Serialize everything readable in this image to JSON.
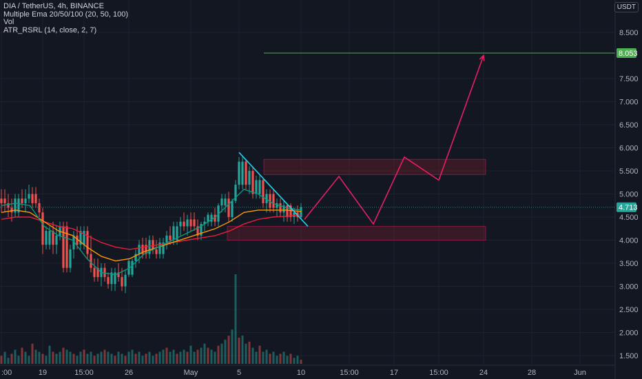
{
  "legend": {
    "symbol_line": "DIA / TetherUS, 4h, BINANCE",
    "ema_line": "Multiple Ema 20/50/100 (20, 50, 100)",
    "vol_line": "Vol",
    "atr_line": "ATR_RSRL (14, close, 2, 7)"
  },
  "currency": "USDT",
  "colors": {
    "background": "#131722",
    "up": "#26a69a",
    "down": "#ef5350",
    "ema20": "#089981",
    "ema50": "#ff9800",
    "ema100": "#e91e3c",
    "atr_stop": "#4caf50",
    "projection": "#e91e63",
    "trendline": "#22d3ee",
    "target_line": "#4caf50",
    "zone_fill": "#7a1f2b"
  },
  "chart_data": {
    "type": "candlestick",
    "symbol": "DIA / TetherUS",
    "timeframe": "4h",
    "exchange": "BINANCE",
    "ylim": [
      1.3,
      9.0
    ],
    "price_axis_ticks": [
      "8.500",
      "8.053",
      "7.500",
      "7.000",
      "6.500",
      "6.000",
      "5.500",
      "5.000",
      "4.713",
      "4.500",
      "4.000",
      "3.500",
      "3.000",
      "2.500",
      "2.000",
      "1.500"
    ],
    "price_tick_values": [
      8.5,
      8.053,
      7.5,
      7.0,
      6.5,
      6.0,
      5.5,
      5.0,
      4.713,
      4.5,
      4.0,
      3.5,
      3.0,
      2.5,
      2.0,
      1.5
    ],
    "time_axis_labels": [
      ":00",
      "19",
      "15:00",
      "26",
      "May",
      "5",
      "10",
      "15:00",
      "17",
      "15:00",
      "24",
      "28",
      "Jun"
    ],
    "time_axis_positions": [
      0,
      12,
      24,
      37,
      55,
      69,
      87,
      101,
      114,
      127,
      140,
      154,
      168
    ],
    "bars_visible": 88,
    "ohlc_samples": [
      {
        "o": 4.9,
        "h": 5.1,
        "l": 4.6,
        "c": 4.8
      },
      {
        "o": 4.8,
        "h": 5.0,
        "l": 4.5,
        "c": 4.7
      },
      {
        "o": 4.7,
        "h": 4.9,
        "l": 4.4,
        "c": 4.6
      },
      {
        "o": 4.6,
        "h": 5.0,
        "l": 4.5,
        "c": 4.9
      },
      {
        "o": 4.9,
        "h": 5.1,
        "l": 4.7,
        "c": 4.8
      },
      {
        "o": 4.8,
        "h": 5.1,
        "l": 4.6,
        "c": 4.9
      },
      {
        "o": 4.9,
        "h": 5.2,
        "l": 4.8,
        "c": 5.0
      },
      {
        "o": 5.0,
        "h": 5.15,
        "l": 4.7,
        "c": 4.8
      },
      {
        "o": 4.8,
        "h": 4.9,
        "l": 4.5,
        "c": 4.6
      },
      {
        "o": 4.6,
        "h": 4.7,
        "l": 3.7,
        "c": 3.9
      },
      {
        "o": 3.9,
        "h": 4.3,
        "l": 3.8,
        "c": 4.2
      },
      {
        "o": 4.2,
        "h": 4.4,
        "l": 3.7,
        "c": 3.9
      },
      {
        "o": 3.9,
        "h": 4.3,
        "l": 3.7,
        "c": 4.1
      },
      {
        "o": 4.1,
        "h": 4.4,
        "l": 4.0,
        "c": 4.3
      },
      {
        "o": 4.3,
        "h": 4.4,
        "l": 3.3,
        "c": 3.4
      },
      {
        "o": 3.4,
        "h": 3.9,
        "l": 3.3,
        "c": 3.8
      },
      {
        "o": 3.8,
        "h": 4.2,
        "l": 3.6,
        "c": 4.1
      },
      {
        "o": 4.1,
        "h": 4.3,
        "l": 3.8,
        "c": 3.9
      },
      {
        "o": 3.9,
        "h": 4.3,
        "l": 3.8,
        "c": 4.2
      },
      {
        "o": 4.2,
        "h": 4.3,
        "l": 3.6,
        "c": 3.7
      },
      {
        "o": 3.7,
        "h": 4.1,
        "l": 3.3,
        "c": 3.4
      },
      {
        "o": 3.4,
        "h": 3.6,
        "l": 3.1,
        "c": 3.2
      },
      {
        "o": 3.2,
        "h": 3.5,
        "l": 3.0,
        "c": 3.4
      },
      {
        "o": 3.4,
        "h": 3.5,
        "l": 3.1,
        "c": 3.2
      },
      {
        "o": 3.2,
        "h": 3.3,
        "l": 2.95,
        "c": 3.05
      },
      {
        "o": 3.05,
        "h": 3.4,
        "l": 2.9,
        "c": 3.3
      },
      {
        "o": 3.3,
        "h": 3.5,
        "l": 3.1,
        "c": 3.2
      },
      {
        "o": 3.2,
        "h": 3.4,
        "l": 2.9,
        "c": 3.0
      },
      {
        "o": 3.0,
        "h": 3.35,
        "l": 2.85,
        "c": 3.25
      },
      {
        "o": 3.25,
        "h": 3.6,
        "l": 3.2,
        "c": 3.55
      },
      {
        "o": 3.55,
        "h": 3.8,
        "l": 3.4,
        "c": 3.7
      },
      {
        "o": 3.7,
        "h": 4.0,
        "l": 3.5,
        "c": 3.9
      },
      {
        "o": 3.9,
        "h": 4.05,
        "l": 3.6,
        "c": 3.7
      },
      {
        "o": 3.7,
        "h": 4.1,
        "l": 3.6,
        "c": 4.0
      },
      {
        "o": 4.0,
        "h": 4.1,
        "l": 3.7,
        "c": 3.8
      },
      {
        "o": 3.8,
        "h": 4.0,
        "l": 3.6,
        "c": 3.7
      },
      {
        "o": 3.7,
        "h": 4.05,
        "l": 3.6,
        "c": 3.95
      },
      {
        "o": 3.95,
        "h": 4.2,
        "l": 3.8,
        "c": 4.1
      },
      {
        "o": 4.1,
        "h": 4.3,
        "l": 3.9,
        "c": 4.0
      },
      {
        "o": 4.0,
        "h": 4.4,
        "l": 3.9,
        "c": 4.3
      },
      {
        "o": 4.3,
        "h": 4.5,
        "l": 4.1,
        "c": 4.4
      },
      {
        "o": 4.4,
        "h": 4.6,
        "l": 4.2,
        "c": 4.3
      },
      {
        "o": 4.3,
        "h": 4.55,
        "l": 4.1,
        "c": 4.45
      },
      {
        "o": 4.45,
        "h": 4.6,
        "l": 4.2,
        "c": 4.3
      },
      {
        "o": 4.3,
        "h": 4.45,
        "l": 4.0,
        "c": 4.1
      },
      {
        "o": 4.1,
        "h": 4.4,
        "l": 4.0,
        "c": 4.35
      },
      {
        "o": 4.35,
        "h": 4.5,
        "l": 4.2,
        "c": 4.4
      },
      {
        "o": 4.4,
        "h": 4.6,
        "l": 4.3,
        "c": 4.55
      },
      {
        "o": 4.55,
        "h": 4.7,
        "l": 4.3,
        "c": 4.4
      },
      {
        "o": 4.4,
        "h": 4.8,
        "l": 4.3,
        "c": 4.75
      },
      {
        "o": 4.75,
        "h": 5.0,
        "l": 4.6,
        "c": 4.9
      },
      {
        "o": 4.9,
        "h": 5.05,
        "l": 4.4,
        "c": 4.5
      },
      {
        "o": 4.5,
        "h": 4.9,
        "l": 4.4,
        "c": 4.85
      },
      {
        "o": 4.85,
        "h": 5.3,
        "l": 4.8,
        "c": 5.2
      },
      {
        "o": 5.2,
        "h": 5.8,
        "l": 5.1,
        "c": 5.7
      },
      {
        "o": 5.7,
        "h": 5.75,
        "l": 5.1,
        "c": 5.2
      },
      {
        "o": 5.2,
        "h": 5.6,
        "l": 5.0,
        "c": 5.5
      },
      {
        "o": 5.5,
        "h": 5.6,
        "l": 4.9,
        "c": 5.0
      },
      {
        "o": 5.0,
        "h": 5.4,
        "l": 4.9,
        "c": 5.3
      },
      {
        "o": 5.3,
        "h": 5.35,
        "l": 4.7,
        "c": 4.8
      },
      {
        "o": 4.8,
        "h": 5.1,
        "l": 4.6,
        "c": 5.0
      },
      {
        "o": 5.0,
        "h": 5.1,
        "l": 4.6,
        "c": 4.7
      },
      {
        "o": 4.7,
        "h": 4.9,
        "l": 4.5,
        "c": 4.8
      },
      {
        "o": 4.8,
        "h": 4.9,
        "l": 4.5,
        "c": 4.6
      },
      {
        "o": 4.6,
        "h": 4.85,
        "l": 4.4,
        "c": 4.75
      },
      {
        "o": 4.75,
        "h": 4.8,
        "l": 4.4,
        "c": 4.5
      },
      {
        "o": 4.5,
        "h": 4.7,
        "l": 4.35,
        "c": 4.6
      },
      {
        "o": 4.6,
        "h": 4.75,
        "l": 4.4,
        "c": 4.5
      },
      {
        "o": 4.5,
        "h": 4.8,
        "l": 4.45,
        "c": 4.713
      }
    ],
    "ema20_line": [
      4.75,
      4.8,
      4.75,
      4.3,
      4.1,
      4.0,
      3.6,
      3.3,
      3.25,
      3.4,
      3.7,
      3.85,
      4.0,
      4.15,
      4.3,
      4.5,
      4.8,
      5.1,
      5.0,
      4.8,
      4.7,
      4.65
    ],
    "ema50_line": [
      4.6,
      4.65,
      4.6,
      4.4,
      4.2,
      4.1,
      3.85,
      3.65,
      3.55,
      3.6,
      3.75,
      3.85,
      3.95,
      4.05,
      4.15,
      4.25,
      4.4,
      4.6,
      4.65,
      4.65,
      4.65,
      4.62
    ],
    "ema100_line": [
      4.45,
      4.5,
      4.5,
      4.4,
      4.3,
      4.25,
      4.1,
      3.95,
      3.85,
      3.8,
      3.85,
      3.9,
      3.95,
      4.0,
      4.05,
      4.1,
      4.2,
      4.35,
      4.45,
      4.5,
      4.52,
      4.55
    ],
    "last_price": "4.713",
    "target_price": "8.053",
    "resistance_zone": [
      5.42,
      5.75
    ],
    "support_zone": [
      4.0,
      4.3
    ],
    "projection_path": [
      {
        "bar": 88,
        "price": 4.45
      },
      {
        "bar": 98,
        "price": 5.38
      },
      {
        "bar": 108,
        "price": 4.35
      },
      {
        "bar": 117,
        "price": 5.8
      },
      {
        "bar": 127,
        "price": 5.3
      },
      {
        "bar": 140,
        "price": 8.0
      }
    ],
    "trendline": [
      {
        "bar": 69,
        "price": 5.9
      },
      {
        "bar": 89,
        "price": 4.3
      }
    ],
    "volume": {
      "spike_bar": 68,
      "relative_heights": [
        0.2,
        0.3,
        0.15,
        0.25,
        0.35,
        0.2,
        0.4,
        0.3,
        0.2,
        0.5,
        0.35,
        0.3,
        0.25,
        0.2,
        0.45,
        0.3,
        0.25,
        0.3,
        0.4,
        0.35,
        0.3,
        0.25,
        0.2,
        0.3,
        0.35,
        0.25,
        0.3,
        0.2,
        0.25,
        0.3,
        0.35,
        0.3,
        0.25,
        0.2,
        0.3,
        0.25,
        0.2,
        0.3,
        0.35,
        0.25,
        0.3,
        0.2,
        0.25,
        0.3,
        0.2,
        0.25,
        0.3,
        0.35,
        0.4,
        0.3,
        0.35,
        0.25,
        0.3,
        0.35,
        0.3,
        0.45,
        0.3,
        0.35,
        0.4,
        0.5,
        0.4,
        0.35,
        0.3,
        0.45,
        0.5,
        0.6,
        0.7,
        0.85,
        1.0,
        0.65,
        0.7,
        0.5,
        0.55,
        0.4,
        0.3,
        0.45,
        0.3,
        0.35,
        0.25,
        0.3,
        0.2,
        0.25,
        0.3,
        0.2,
        0.25,
        0.15,
        0.2,
        0.1
      ]
    }
  }
}
